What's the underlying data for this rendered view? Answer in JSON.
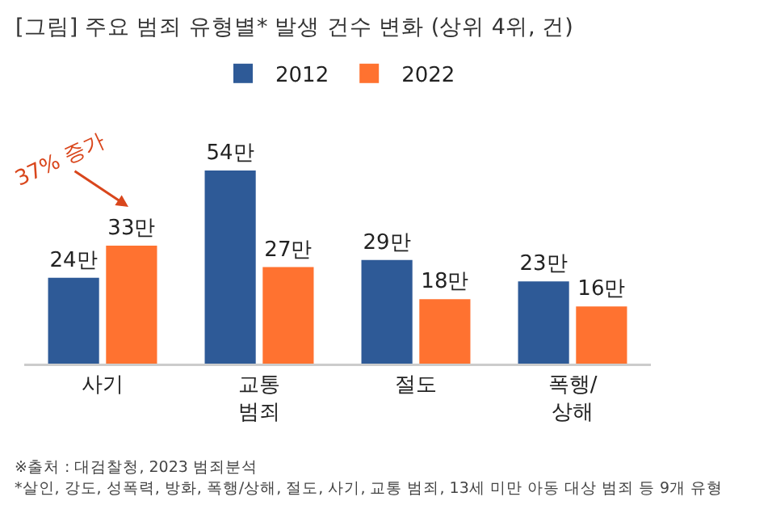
{
  "chart_data": {
    "type": "bar",
    "title": "[그림] 주요 범죄 유형별* 발생 건수 변화 (상위 4위, 건)",
    "categories": [
      "사기",
      "교통\n범죄",
      "절도",
      "폭행/\n상해"
    ],
    "series": [
      {
        "name": "2012",
        "color": "#2e5a97",
        "values": [
          24,
          54,
          29,
          23
        ],
        "value_labels": [
          "24만",
          "54만",
          "29만",
          "23만"
        ]
      },
      {
        "name": "2022",
        "color": "#ff7230",
        "values": [
          33,
          27,
          18,
          16
        ],
        "value_labels": [
          "33만",
          "27만",
          "18만",
          "16만"
        ]
      }
    ],
    "legend": "top",
    "annotations": [
      {
        "text": "37% 증가",
        "x": "사기",
        "y": 33
      },
      "※출처 : 대검찰청, 2023 범죄분석",
      "*살인, 강도, 성폭력, 방화, 폭행/상해, 절도, 사기, 교통 범죄, 13세 미만 아동 대상 범죄 등 9개 유형"
    ]
  }
}
